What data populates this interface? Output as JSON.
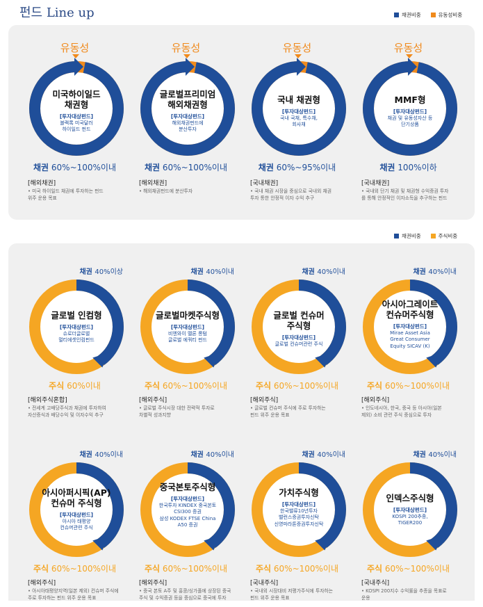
{
  "page_title": "펀드 Line up",
  "legend1": {
    "a": "채권비중",
    "b": "유동성비중",
    "a_color": "#1f4e99",
    "b_color": "#f08a1c"
  },
  "legend2": {
    "a": "채권비중",
    "b": "주식비중",
    "a_color": "#1f4e99",
    "b_color": "#f5a623"
  },
  "section1": [
    {
      "top": "유동성",
      "name": [
        "미국하이일드",
        "채권형"
      ],
      "label": "[투자대상펀드]",
      "desc": [
        "블랙록 미국달러",
        "하이일드 펀드"
      ],
      "ratio_k": "채권",
      "ratio_v": "60%~100%이내",
      "cat": "[해외채권]",
      "note": [
        "• 미국 하이일드 채권에 투자하는 펀드",
        "위주 운용 목표"
      ],
      "fill": 0.97
    },
    {
      "top": "유동성",
      "name": [
        "글로벌프리미엄",
        "해외채권형"
      ],
      "label": "[투자대상펀드]",
      "desc": [
        "해외채권펀드에",
        "분산투자"
      ],
      "ratio_k": "채권",
      "ratio_v": "60%~100%이내",
      "cat": "[해외채권]",
      "note": [
        "• 해외채권펀드에 분산투자"
      ],
      "fill": 0.97
    },
    {
      "top": "유동성",
      "name": [
        "국내 채권형"
      ],
      "label": "[투자대상펀드]",
      "desc": [
        "국내 국채, 특수채,",
        "회사채"
      ],
      "ratio_k": "채권",
      "ratio_v": "60%~95%이내",
      "cat": "[국내채권]",
      "note": [
        "• 국내 채권 시장을 중심으로 국내외 채권",
        "투자 통한 안정적 이자 수익 추구"
      ],
      "fill": 0.97
    },
    {
      "top": "유동성",
      "name": [
        "MMF형"
      ],
      "label": "[투자대상펀드]",
      "desc": [
        "채권 및 유동성자산 등",
        "단기상품"
      ],
      "ratio_k": "채권",
      "ratio_v": "100%이하",
      "cat": "[국내채권]",
      "note": [
        "• 국내외 단기 채권 및 채권형 수익증권 투자",
        "를 통해 안정적인 이자소득을 추구하는 펀드"
      ],
      "fill": 0.97
    }
  ],
  "section2": [
    {
      "tag_k": "채권",
      "tag_v": "40%이상",
      "name": [
        "글로벌 인컴형"
      ],
      "label": "[투자대상펀드]",
      "desc": [
        "슈로더글로벌",
        "멀티에셋인컴펀드"
      ],
      "ratio_k": "주식",
      "ratio_v": "60%이내",
      "cat": "[해외주식혼합]",
      "note": [
        "• 전세계 고배당주식과 채권에 투자하여",
        "자산증식과 배당수익 및 이자수익 추구"
      ],
      "fill": 0.4
    },
    {
      "tag_k": "채권",
      "tag_v": "40%이내",
      "name": [
        "글로벌마켓주식형"
      ],
      "label": "[투자대상펀드]",
      "desc": [
        "비엔와이 멜론 롱텀",
        "글로벌 에쿼티 펀드"
      ],
      "ratio_k": "주식",
      "ratio_v": "60%~100%이내",
      "cat": "[해외주식]",
      "note": [
        "• 글로벌 주식시장 대한 전략적 투자로",
        "차별적 성과지향"
      ],
      "fill": 0.4
    },
    {
      "tag_k": "채권",
      "tag_v": "40%이내",
      "name": [
        "글로벌 컨슈머",
        "주식형"
      ],
      "label": "[투자대상펀드]",
      "desc": [
        "글로벌 컨슈머관련 주식"
      ],
      "ratio_k": "주식",
      "ratio_v": "60%~100%이내",
      "cat": "[해외주식]",
      "note": [
        "• 글로벌 컨슈머 주식에 주로 투자하는",
        "펀드 위주 운용 목표"
      ],
      "fill": 0.4
    },
    {
      "tag_k": "채권",
      "tag_v": "40%이내",
      "name": [
        "아시아그레이트",
        "컨슈머주식형"
      ],
      "label": "[투자대상펀드]",
      "desc": [
        "Mirae Asset Asia",
        "Great Consumer",
        "Equity SICAV (K)"
      ],
      "ratio_k": "주식",
      "ratio_v": "60%~100%이내",
      "cat": "[해외주식]",
      "note": [
        "• 인도네시아, 한국, 중국 등 아시아(일본",
        "제외) 소비 관련 주식 중심으로 투자"
      ],
      "fill": 0.4
    },
    {
      "tag_k": "채권",
      "tag_v": "40%이내",
      "name": [
        "아시아퍼시픽(AP)",
        "컨슈머 주식형"
      ],
      "label": "[투자대상펀드]",
      "desc": [
        "아시아 태평양",
        "컨슈머관련 주식"
      ],
      "ratio_k": "주식",
      "ratio_v": "60%~100%이내",
      "cat": "[해외주식]",
      "note": [
        "• 아시아태평양지역(일본 제외) 컨슈머 주식에",
        "주로 투자하는 펀드 위주 운용 목표"
      ],
      "fill": 0.4
    },
    {
      "tag_k": "채권",
      "tag_v": "40%이내",
      "name": [
        "중국본토주식형"
      ],
      "label": "[투자대상펀드]",
      "desc": [
        "한국투자 KINDEX 중국본토",
        "CSI300 증권",
        "삼성 KODEX FTSE China",
        "A50 증권"
      ],
      "ratio_k": "주식",
      "ratio_v": "60%~100%이내",
      "cat": "[해외주식]",
      "note": [
        "• 중국 본토 A주 및 홍콩/싱가폴에 상장된 중국",
        "주식 및 수익증권 등을 중심으로 중국에 투자"
      ],
      "fill": 0.4
    },
    {
      "tag_k": "채권",
      "tag_v": "40%이내",
      "name": [
        "가치주식형"
      ],
      "label": "[투자대상펀드]",
      "desc": [
        "한국밸류10년투자",
        "밸런스증권투자신탁",
        "신영마라톤증권투자신탁"
      ],
      "ratio_k": "주식",
      "ratio_v": "60%~100%이내",
      "cat": "[국내주식]",
      "note": [
        "• 국내외 시장대비 저평가주식에 투자하는",
        "펀드 위주 운용 목표"
      ],
      "fill": 0.4
    },
    {
      "tag_k": "채권",
      "tag_v": "40%이내",
      "name": [
        "인덱스주식형"
      ],
      "label": "[투자대상펀드]",
      "desc": [
        "KOSPI 200추종,",
        "TIGER200"
      ],
      "ratio_k": "주식",
      "ratio_v": "60%~100%이내",
      "cat": "[국내주식]",
      "note": [
        "• KOSPI 200지수 수익률을 추종을 목표로",
        "운용"
      ],
      "fill": 0.4
    }
  ]
}
